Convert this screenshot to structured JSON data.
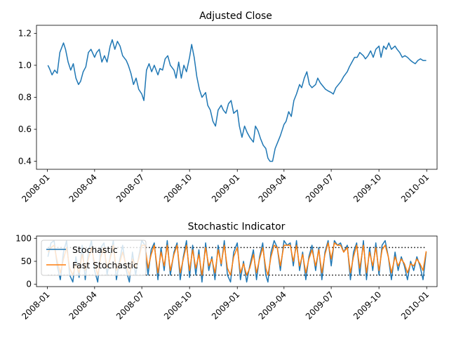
{
  "chart_data": [
    {
      "type": "line",
      "title": "Adjusted Close",
      "xlabel": "",
      "ylabel": "",
      "x_ticks": [
        "2008-01",
        "2008-04",
        "2008-07",
        "2008-10",
        "2009-01",
        "2009-04",
        "2009-07",
        "2009-10",
        "2010-01"
      ],
      "y_ticks": [
        "0.4",
        "0.6",
        "0.8",
        "1.0",
        "1.2"
      ],
      "xlim": [
        "2007-12-11",
        "2010-01-21"
      ],
      "ylim": [
        0.35,
        1.25
      ],
      "grid": false,
      "series": [
        {
          "color": "#1f77b4",
          "x": [
            "2008-01-02",
            "2008-01-05",
            "2008-01-10",
            "2008-01-15",
            "2008-01-20",
            "2008-01-25",
            "2008-02-01",
            "2008-02-05",
            "2008-02-10",
            "2008-02-15",
            "2008-02-20",
            "2008-02-25",
            "2008-03-01",
            "2008-03-05",
            "2008-03-10",
            "2008-03-15",
            "2008-03-20",
            "2008-03-25",
            "2008-04-01",
            "2008-04-05",
            "2008-04-10",
            "2008-04-15",
            "2008-04-20",
            "2008-04-25",
            "2008-05-01",
            "2008-05-05",
            "2008-05-10",
            "2008-05-15",
            "2008-05-20",
            "2008-05-25",
            "2008-06-01",
            "2008-06-05",
            "2008-06-10",
            "2008-06-15",
            "2008-06-20",
            "2008-06-25",
            "2008-07-01",
            "2008-07-05",
            "2008-07-10",
            "2008-07-15",
            "2008-07-20",
            "2008-07-25",
            "2008-08-01",
            "2008-08-05",
            "2008-08-10",
            "2008-08-15",
            "2008-08-20",
            "2008-08-25",
            "2008-09-01",
            "2008-09-05",
            "2008-09-10",
            "2008-09-15",
            "2008-09-20",
            "2008-09-25",
            "2008-10-01",
            "2008-10-05",
            "2008-10-10",
            "2008-10-15",
            "2008-10-20",
            "2008-10-25",
            "2008-11-01",
            "2008-11-05",
            "2008-11-10",
            "2008-11-15",
            "2008-11-20",
            "2008-11-25",
            "2008-12-01",
            "2008-12-05",
            "2008-12-10",
            "2008-12-15",
            "2008-12-20",
            "2008-12-25",
            "2009-01-01",
            "2009-01-05",
            "2009-01-10",
            "2009-01-15",
            "2009-01-20",
            "2009-01-25",
            "2009-02-01",
            "2009-02-05",
            "2009-02-10",
            "2009-02-15",
            "2009-02-20",
            "2009-02-25",
            "2009-03-01",
            "2009-03-05",
            "2009-03-10",
            "2009-03-15",
            "2009-03-20",
            "2009-03-25",
            "2009-04-01",
            "2009-04-05",
            "2009-04-10",
            "2009-04-15",
            "2009-04-20",
            "2009-04-25",
            "2009-05-01",
            "2009-05-05",
            "2009-05-10",
            "2009-05-15",
            "2009-05-20",
            "2009-05-25",
            "2009-06-01",
            "2009-06-05",
            "2009-06-10",
            "2009-06-15",
            "2009-06-20",
            "2009-06-25",
            "2009-07-01",
            "2009-07-05",
            "2009-07-10",
            "2009-07-15",
            "2009-07-20",
            "2009-07-25",
            "2009-08-01",
            "2009-08-05",
            "2009-08-10",
            "2009-08-15",
            "2009-08-20",
            "2009-08-25",
            "2009-09-01",
            "2009-09-05",
            "2009-09-10",
            "2009-09-15",
            "2009-09-20",
            "2009-09-25",
            "2009-10-01",
            "2009-10-05",
            "2009-10-10",
            "2009-10-15",
            "2009-10-20",
            "2009-10-25",
            "2009-11-01",
            "2009-11-05",
            "2009-11-10",
            "2009-11-15",
            "2009-11-20",
            "2009-11-25",
            "2009-12-01",
            "2009-12-05",
            "2009-12-10",
            "2009-12-15",
            "2009-12-20",
            "2009-12-25",
            "2009-12-31"
          ],
          "values": [
            1.0,
            0.98,
            0.94,
            0.97,
            0.95,
            1.08,
            1.14,
            1.1,
            1.02,
            0.97,
            1.01,
            0.92,
            0.88,
            0.9,
            0.96,
            0.99,
            1.08,
            1.1,
            1.05,
            1.08,
            1.1,
            1.02,
            1.06,
            1.02,
            1.12,
            1.16,
            1.1,
            1.15,
            1.12,
            1.06,
            1.03,
            1.0,
            0.95,
            0.88,
            0.92,
            0.85,
            0.82,
            0.78,
            0.97,
            1.01,
            0.96,
            1.0,
            0.94,
            0.98,
            0.97,
            1.04,
            1.06,
            1.0,
            0.97,
            0.92,
            1.02,
            0.92,
            1.0,
            0.96,
            1.05,
            1.13,
            1.05,
            0.93,
            0.85,
            0.8,
            0.83,
            0.75,
            0.72,
            0.65,
            0.62,
            0.72,
            0.75,
            0.72,
            0.7,
            0.76,
            0.78,
            0.7,
            0.72,
            0.62,
            0.55,
            0.62,
            0.58,
            0.55,
            0.52,
            0.62,
            0.59,
            0.54,
            0.5,
            0.48,
            0.42,
            0.4,
            0.4,
            0.48,
            0.52,
            0.56,
            0.63,
            0.65,
            0.71,
            0.68,
            0.78,
            0.82,
            0.88,
            0.86,
            0.92,
            0.96,
            0.88,
            0.86,
            0.88,
            0.92,
            0.89,
            0.87,
            0.85,
            0.84,
            0.83,
            0.82,
            0.86,
            0.88,
            0.9,
            0.93,
            0.96,
            0.99,
            1.02,
            1.05,
            1.05,
            1.08,
            1.06,
            1.04,
            1.06,
            1.09,
            1.05,
            1.1,
            1.12,
            1.05,
            1.12,
            1.1,
            1.14,
            1.1,
            1.12,
            1.1,
            1.08,
            1.05,
            1.06,
            1.05,
            1.03,
            1.02,
            1.01,
            1.03,
            1.04,
            1.03,
            1.03
          ]
        }
      ]
    },
    {
      "type": "line",
      "title": "Stochastic Indicator",
      "xlabel": "",
      "ylabel": "",
      "x_ticks": [
        "2008-01",
        "2008-04",
        "2008-07",
        "2008-10",
        "2009-01",
        "2009-04",
        "2009-07",
        "2009-10",
        "2010-01"
      ],
      "y_ticks": [
        "0",
        "50",
        "100"
      ],
      "xlim": [
        "2007-12-11",
        "2010-01-21"
      ],
      "ylim": [
        -5,
        105
      ],
      "grid": false,
      "legend": "upper-left",
      "reference_lines": [
        20,
        80
      ],
      "series": [
        {
          "name": "Stochastic",
          "color": "#1f77b4",
          "x": [
            "2008-01-02",
            "2008-01-08",
            "2008-01-14",
            "2008-01-20",
            "2008-01-26",
            "2008-02-01",
            "2008-02-07",
            "2008-02-13",
            "2008-02-19",
            "2008-02-25",
            "2008-03-02",
            "2008-03-08",
            "2008-03-14",
            "2008-03-20",
            "2008-03-26",
            "2008-04-01",
            "2008-04-07",
            "2008-04-13",
            "2008-04-19",
            "2008-04-25",
            "2008-05-01",
            "2008-05-07",
            "2008-05-13",
            "2008-05-19",
            "2008-05-25",
            "2008-06-01",
            "2008-06-07",
            "2008-06-13",
            "2008-06-19",
            "2008-06-25",
            "2008-07-01",
            "2008-07-07",
            "2008-07-13",
            "2008-07-19",
            "2008-07-25",
            "2008-08-01",
            "2008-08-07",
            "2008-08-13",
            "2008-08-19",
            "2008-08-25",
            "2008-09-01",
            "2008-09-07",
            "2008-09-13",
            "2008-09-19",
            "2008-09-25",
            "2008-10-01",
            "2008-10-07",
            "2008-10-13",
            "2008-10-19",
            "2008-10-25",
            "2008-11-01",
            "2008-11-07",
            "2008-11-13",
            "2008-11-19",
            "2008-11-25",
            "2008-12-01",
            "2008-12-07",
            "2008-12-13",
            "2008-12-19",
            "2008-12-25",
            "2009-01-01",
            "2009-01-07",
            "2009-01-13",
            "2009-01-19",
            "2009-01-25",
            "2009-02-01",
            "2009-02-07",
            "2009-02-13",
            "2009-02-19",
            "2009-02-25",
            "2009-03-01",
            "2009-03-07",
            "2009-03-13",
            "2009-03-19",
            "2009-03-25",
            "2009-04-01",
            "2009-04-07",
            "2009-04-13",
            "2009-04-19",
            "2009-04-25",
            "2009-05-01",
            "2009-05-07",
            "2009-05-13",
            "2009-05-19",
            "2009-05-25",
            "2009-06-01",
            "2009-06-07",
            "2009-06-13",
            "2009-06-19",
            "2009-06-25",
            "2009-07-01",
            "2009-07-07",
            "2009-07-13",
            "2009-07-19",
            "2009-07-25",
            "2009-08-01",
            "2009-08-07",
            "2009-08-13",
            "2009-08-19",
            "2009-08-25",
            "2009-09-01",
            "2009-09-07",
            "2009-09-13",
            "2009-09-19",
            "2009-09-25",
            "2009-10-01",
            "2009-10-07",
            "2009-10-13",
            "2009-10-19",
            "2009-10-25",
            "2009-11-01",
            "2009-11-07",
            "2009-11-13",
            "2009-11-19",
            "2009-11-25",
            "2009-12-01",
            "2009-12-07",
            "2009-12-13",
            "2009-12-19",
            "2009-12-25",
            "2009-12-31"
          ],
          "values": [
            60,
            90,
            95,
            40,
            10,
            70,
            95,
            20,
            5,
            60,
            15,
            85,
            10,
            70,
            95,
            30,
            5,
            80,
            90,
            20,
            60,
            95,
            10,
            50,
            85,
            30,
            5,
            70,
            20,
            60,
            95,
            85,
            20,
            75,
            90,
            10,
            80,
            30,
            95,
            20,
            70,
            90,
            10,
            60,
            95,
            15,
            85,
            20,
            75,
            5,
            90,
            30,
            60,
            10,
            85,
            40,
            95,
            20,
            5,
            70,
            90,
            10,
            50,
            5,
            40,
            75,
            10,
            60,
            90,
            20,
            5,
            70,
            95,
            80,
            30,
            95,
            85,
            90,
            40,
            95,
            30,
            70,
            10,
            60,
            85,
            30,
            80,
            10,
            70,
            95,
            40,
            95,
            85,
            90,
            70,
            85,
            10,
            70,
            90,
            20,
            95,
            10,
            80,
            30,
            90,
            20,
            85,
            95,
            60,
            10,
            70,
            30,
            60,
            40,
            10,
            50,
            30,
            60,
            40,
            10,
            70
          ]
        },
        {
          "name": "Fast Stochastic",
          "color": "#ff7f0e",
          "x": [
            "2008-01-02",
            "2008-01-08",
            "2008-01-14",
            "2008-01-20",
            "2008-01-26",
            "2008-02-01",
            "2008-02-07",
            "2008-02-13",
            "2008-02-19",
            "2008-02-25",
            "2008-03-02",
            "2008-03-08",
            "2008-03-14",
            "2008-03-20",
            "2008-03-26",
            "2008-04-01",
            "2008-04-07",
            "2008-04-13",
            "2008-04-19",
            "2008-04-25",
            "2008-05-01",
            "2008-05-07",
            "2008-05-13",
            "2008-05-19",
            "2008-05-25",
            "2008-06-01",
            "2008-06-07",
            "2008-06-13",
            "2008-06-19",
            "2008-06-25",
            "2008-07-01",
            "2008-07-07",
            "2008-07-13",
            "2008-07-19",
            "2008-07-25",
            "2008-08-01",
            "2008-08-07",
            "2008-08-13",
            "2008-08-19",
            "2008-08-25",
            "2008-09-01",
            "2008-09-07",
            "2008-09-13",
            "2008-09-19",
            "2008-09-25",
            "2008-10-01",
            "2008-10-07",
            "2008-10-13",
            "2008-10-19",
            "2008-10-25",
            "2008-11-01",
            "2008-11-07",
            "2008-11-13",
            "2008-11-19",
            "2008-11-25",
            "2008-12-01",
            "2008-12-07",
            "2008-12-13",
            "2008-12-19",
            "2008-12-25",
            "2009-01-01",
            "2009-01-07",
            "2009-01-13",
            "2009-01-19",
            "2009-01-25",
            "2009-02-01",
            "2009-02-07",
            "2009-02-13",
            "2009-02-19",
            "2009-02-25",
            "2009-03-01",
            "2009-03-07",
            "2009-03-13",
            "2009-03-19",
            "2009-03-25",
            "2009-04-01",
            "2009-04-07",
            "2009-04-13",
            "2009-04-19",
            "2009-04-25",
            "2009-05-01",
            "2009-05-07",
            "2009-05-13",
            "2009-05-19",
            "2009-05-25",
            "2009-06-01",
            "2009-06-07",
            "2009-06-13",
            "2009-06-19",
            "2009-06-25",
            "2009-07-01",
            "2009-07-07",
            "2009-07-13",
            "2009-07-19",
            "2009-07-25",
            "2009-08-01",
            "2009-08-07",
            "2009-08-13",
            "2009-08-19",
            "2009-08-25",
            "2009-09-01",
            "2009-09-07",
            "2009-09-13",
            "2009-09-19",
            "2009-09-25",
            "2009-10-01",
            "2009-10-07",
            "2009-10-13",
            "2009-10-19",
            "2009-10-25",
            "2009-11-01",
            "2009-11-07",
            "2009-11-13",
            "2009-11-19",
            "2009-11-25",
            "2009-12-01",
            "2009-12-07",
            "2009-12-13",
            "2009-12-19",
            "2009-12-25",
            "2009-12-31"
          ],
          "values": [
            70,
            80,
            85,
            50,
            25,
            55,
            80,
            35,
            20,
            45,
            25,
            65,
            30,
            55,
            80,
            45,
            20,
            60,
            80,
            35,
            55,
            85,
            30,
            45,
            70,
            40,
            20,
            55,
            35,
            55,
            85,
            85,
            35,
            65,
            85,
            25,
            70,
            40,
            85,
            30,
            65,
            85,
            25,
            55,
            85,
            30,
            75,
            35,
            65,
            20,
            80,
            40,
            55,
            25,
            75,
            45,
            85,
            35,
            20,
            60,
            80,
            25,
            45,
            20,
            35,
            65,
            25,
            55,
            80,
            35,
            20,
            60,
            85,
            80,
            40,
            85,
            85,
            85,
            50,
            85,
            40,
            65,
            25,
            55,
            75,
            40,
            75,
            25,
            65,
            90,
            55,
            90,
            85,
            85,
            70,
            80,
            25,
            60,
            85,
            35,
            85,
            25,
            70,
            40,
            80,
            30,
            75,
            85,
            60,
            25,
            60,
            40,
            55,
            45,
            25,
            45,
            40,
            55,
            45,
            30,
            72
          ]
        }
      ]
    }
  ]
}
